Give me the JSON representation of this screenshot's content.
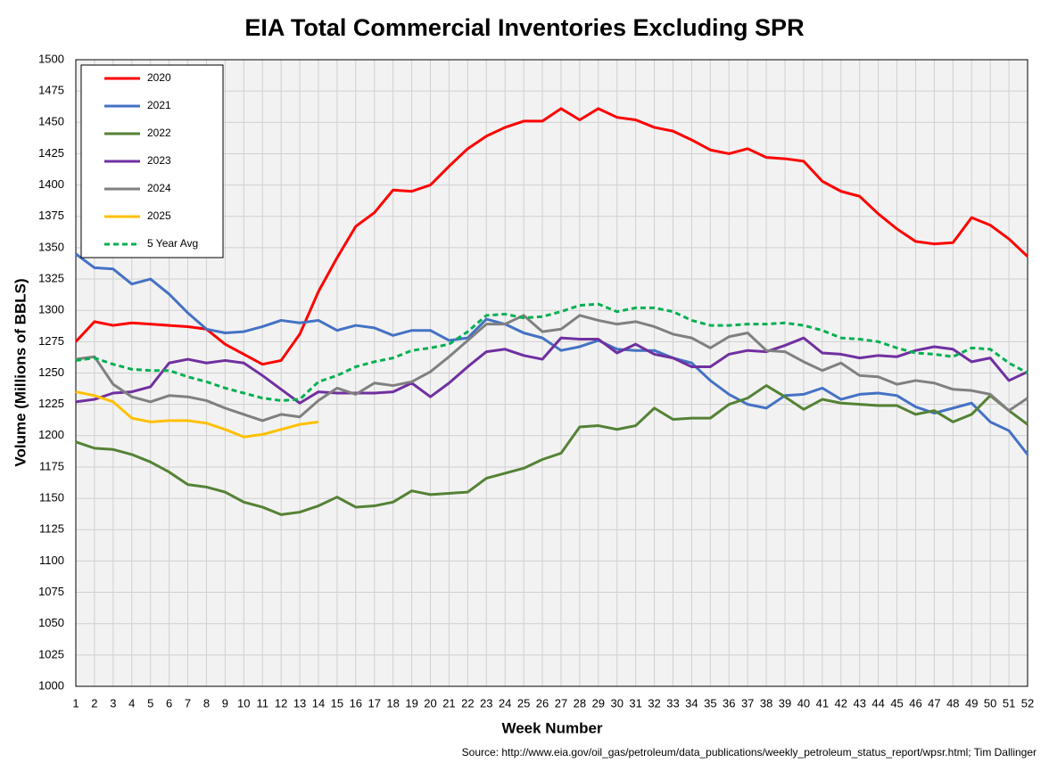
{
  "chart_data": {
    "type": "line",
    "title": "EIA Total Commercial Inventories Excluding SPR",
    "x_label": "Week Number",
    "y_label": "Volume (Millions of BBLS)",
    "source": "Source: http://www.eia.gov/oil_gas/petroleum/data_publications/weekly_petroleum_status_report/wpsr.html; Tim Dallinger",
    "x": [
      1,
      2,
      3,
      4,
      5,
      6,
      7,
      8,
      9,
      10,
      11,
      12,
      13,
      14,
      15,
      16,
      17,
      18,
      19,
      20,
      21,
      22,
      23,
      24,
      25,
      26,
      27,
      28,
      29,
      30,
      31,
      32,
      33,
      34,
      35,
      36,
      37,
      38,
      39,
      40,
      41,
      42,
      43,
      44,
      45,
      46,
      47,
      48,
      49,
      50,
      51,
      52
    ],
    "xlim": [
      1,
      52
    ],
    "xticks": [
      1,
      2,
      3,
      4,
      5,
      6,
      7,
      8,
      9,
      10,
      11,
      12,
      13,
      14,
      15,
      16,
      17,
      18,
      19,
      20,
      21,
      22,
      23,
      24,
      25,
      26,
      27,
      28,
      29,
      30,
      31,
      32,
      33,
      34,
      35,
      36,
      37,
      38,
      39,
      40,
      41,
      42,
      43,
      44,
      45,
      46,
      47,
      48,
      49,
      50,
      51,
      52
    ],
    "ylim": [
      1000,
      1500
    ],
    "yticks": [
      1000,
      1025,
      1050,
      1075,
      1100,
      1125,
      1150,
      1175,
      1200,
      1225,
      1250,
      1275,
      1300,
      1325,
      1350,
      1375,
      1400,
      1425,
      1450,
      1475,
      1500
    ],
    "grid": true,
    "legend": "top-left",
    "series": [
      {
        "name": "2020",
        "color": "#ff0000",
        "values": [
          1275,
          1291,
          1288,
          1290,
          1289,
          1288,
          1287,
          1285,
          1273,
          1265,
          1257,
          1260,
          1281,
          1315,
          1342,
          1367,
          1378,
          1396,
          1395,
          1400,
          1415,
          1429,
          1439,
          1446,
          1451,
          1451,
          1461,
          1452,
          1461,
          1454,
          1452,
          1446,
          1443,
          1436,
          1428,
          1425,
          1429,
          1422,
          1421,
          1419,
          1403,
          1395,
          1391,
          1377,
          1365,
          1355,
          1353,
          1354,
          1374,
          1368,
          1357,
          1343
        ]
      },
      {
        "name": "2021",
        "color": "#4472c4",
        "values": [
          1345,
          1334,
          1333,
          1321,
          1325,
          1313,
          1298,
          1285,
          1282,
          1283,
          1287,
          1292,
          1290,
          1292,
          1284,
          1288,
          1286,
          1280,
          1284,
          1284,
          1276,
          1278,
          1293,
          1289,
          1282,
          1278,
          1268,
          1271,
          1276,
          1269,
          1268,
          1268,
          1262,
          1258,
          1244,
          1233,
          1225,
          1222,
          1232,
          1233,
          1238,
          1229,
          1233,
          1234,
          1232,
          1223,
          1218,
          1222,
          1226,
          1211,
          1204,
          1185
        ]
      },
      {
        "name": "2022",
        "color": "#548235",
        "values": [
          1195,
          1190,
          1189,
          1185,
          1179,
          1171,
          1161,
          1159,
          1155,
          1147,
          1143,
          1137,
          1139,
          1144,
          1151,
          1143,
          1144,
          1147,
          1156,
          1153,
          1154,
          1155,
          1166,
          1170,
          1174,
          1181,
          1186,
          1207,
          1208,
          1205,
          1208,
          1222,
          1213,
          1214,
          1214,
          1225,
          1230,
          1240,
          1231,
          1221,
          1229,
          1226,
          1225,
          1224,
          1224,
          1217,
          1220,
          1211,
          1217,
          1232,
          1220,
          1209
        ]
      },
      {
        "name": "2023",
        "color": "#7030a0",
        "values": [
          1227,
          1229,
          1234,
          1235,
          1239,
          1258,
          1261,
          1258,
          1260,
          1258,
          1248,
          1237,
          1226,
          1235,
          1234,
          1234,
          1234,
          1235,
          1242,
          1231,
          1242,
          1255,
          1267,
          1269,
          1264,
          1261,
          1278,
          1277,
          1277,
          1266,
          1273,
          1265,
          1262,
          1255,
          1255,
          1265,
          1268,
          1267,
          1272,
          1278,
          1266,
          1265,
          1262,
          1264,
          1263,
          1268,
          1271,
          1269,
          1259,
          1262,
          1244,
          1251
        ]
      },
      {
        "name": "2024",
        "color": "#808080",
        "values": [
          1261,
          1263,
          1241,
          1231,
          1227,
          1232,
          1231,
          1228,
          1222,
          1217,
          1212,
          1217,
          1215,
          1228,
          1238,
          1233,
          1242,
          1240,
          1243,
          1251,
          1263,
          1276,
          1289,
          1289,
          1296,
          1283,
          1285,
          1296,
          1292,
          1289,
          1291,
          1287,
          1281,
          1278,
          1270,
          1279,
          1282,
          1268,
          1267,
          1259,
          1252,
          1258,
          1248,
          1247,
          1241,
          1244,
          1242,
          1237,
          1236,
          1233,
          1220,
          1230
        ]
      },
      {
        "name": "2025",
        "color": "#ffc000",
        "values": [
          1235,
          1232,
          1227,
          1214,
          1211,
          1212,
          1212,
          1210,
          1205,
          1199,
          1201,
          1205,
          1209,
          1211,
          null,
          null,
          null,
          null,
          null,
          null,
          null,
          null,
          null,
          null,
          null,
          null,
          null,
          null,
          null,
          null,
          null,
          null,
          null,
          null,
          null,
          null,
          null,
          null,
          null,
          null,
          null,
          null,
          null,
          null,
          null,
          null,
          null,
          null,
          null,
          null,
          null,
          null
        ]
      },
      {
        "name": "5 Year Avg",
        "color": "#00b050",
        "dashed": true,
        "values": [
          1260,
          1262,
          1257,
          1253,
          1252,
          1252,
          1247,
          1243,
          1238,
          1234,
          1230,
          1228,
          1229,
          1243,
          1248,
          1255,
          1259,
          1262,
          1268,
          1270,
          1273,
          1283,
          1296,
          1297,
          1294,
          1295,
          1299,
          1304,
          1305,
          1299,
          1302,
          1302,
          1299,
          1292,
          1288,
          1288,
          1289,
          1289,
          1290,
          1288,
          1284,
          1278,
          1277,
          1275,
          1270,
          1266,
          1265,
          1263,
          1270,
          1269,
          1258,
          1250
        ]
      }
    ]
  }
}
